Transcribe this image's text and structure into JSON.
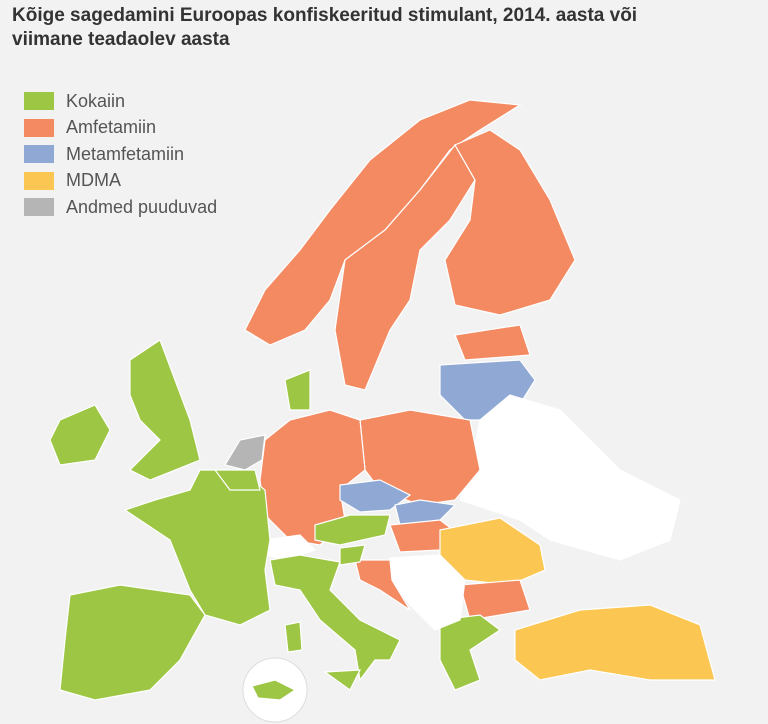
{
  "title": "Kõige sagedamini Euroopas konfiskeeritud stimulant, 2014. aasta või viimane teadaolev aasta",
  "legend": {
    "items": [
      {
        "label": "Kokaiin",
        "color": "#9dc645"
      },
      {
        "label": "Amfetamiin",
        "color": "#f38a61"
      },
      {
        "label": "Metamfetamiin",
        "color": "#8fa8d4"
      },
      {
        "label": "MDMA",
        "color": "#fcc653"
      },
      {
        "label": "Andmed puuduvad",
        "color": "#b5b5b5"
      }
    ]
  }
}
